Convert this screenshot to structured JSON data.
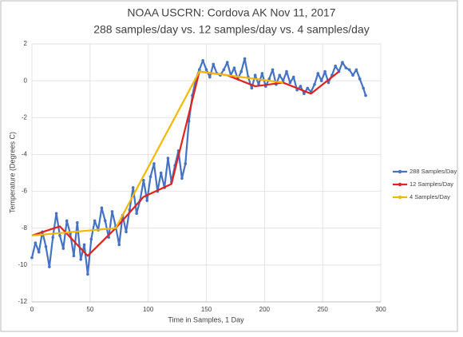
{
  "chart_data": {
    "type": "line",
    "title": "NOAA USCRN:  Cordova AK Nov 11, 2017",
    "subtitle": "288 samples/day vs. 12 samples/day vs. 4 samples/day",
    "x_label": "Time in Samples, 1 Day",
    "y_label": "Temperature  (Degrees C)",
    "xlim": [
      0,
      300
    ],
    "xticks": [
      0,
      50,
      100,
      150,
      200,
      250,
      300
    ],
    "ylim": [
      -12,
      2
    ],
    "yticks": [
      -12,
      -10,
      -8,
      -6,
      -4,
      -2,
      0,
      2
    ],
    "grid": true,
    "legend": "right",
    "series": [
      {
        "name": "288 Samples/Day",
        "color": "#4472c4",
        "markers": true,
        "x": [
          0,
          3,
          6,
          9,
          12,
          15,
          18,
          21,
          24,
          27,
          30,
          33,
          36,
          39,
          42,
          45,
          48,
          51,
          54,
          57,
          60,
          63,
          66,
          69,
          72,
          75,
          78,
          81,
          84,
          87,
          90,
          93,
          96,
          99,
          102,
          105,
          108,
          111,
          114,
          117,
          120,
          123,
          126,
          129,
          132,
          135,
          138,
          141,
          144,
          147,
          150,
          153,
          156,
          159,
          162,
          165,
          168,
          171,
          174,
          177,
          180,
          183,
          186,
          189,
          192,
          195,
          198,
          201,
          204,
          207,
          210,
          213,
          216,
          219,
          222,
          225,
          228,
          231,
          234,
          237,
          240,
          243,
          246,
          249,
          252,
          255,
          258,
          261,
          264,
          267,
          270,
          273,
          276,
          279,
          282,
          285,
          287
        ],
        "values": [
          -9.6,
          -8.8,
          -9.3,
          -8.2,
          -9.0,
          -10.1,
          -8.5,
          -7.2,
          -8.4,
          -9.1,
          -7.6,
          -8.3,
          -9.5,
          -7.7,
          -9.7,
          -8.9,
          -10.5,
          -8.6,
          -7.6,
          -8.1,
          -6.9,
          -7.6,
          -8.5,
          -7.1,
          -7.9,
          -8.9,
          -7.3,
          -8.2,
          -7.0,
          -5.8,
          -7.2,
          -6.5,
          -5.4,
          -6.5,
          -5.2,
          -4.5,
          -6.0,
          -5.0,
          -5.8,
          -4.2,
          -5.5,
          -4.6,
          -3.8,
          -5.3,
          -4.5,
          -2.2,
          -0.8,
          0.1,
          0.6,
          1.1,
          0.6,
          0.2,
          0.9,
          0.4,
          0.3,
          0.6,
          1.0,
          0.3,
          0.7,
          0.1,
          0.5,
          1.2,
          0.2,
          -0.4,
          0.3,
          -0.2,
          0.4,
          -0.3,
          0.1,
          0.6,
          -0.2,
          0.3,
          0.0,
          0.5,
          -0.1,
          0.2,
          -0.5,
          -0.3,
          -0.7,
          -0.4,
          -0.6,
          -0.2,
          0.4,
          0.0,
          0.5,
          -0.1,
          0.3,
          0.8,
          0.5,
          1.0,
          0.7,
          0.6,
          0.3,
          0.6,
          0.1,
          -0.4,
          -0.8
        ]
      },
      {
        "name": "12 Samples/Day",
        "color": "#e3231b",
        "markers": false,
        "x": [
          0,
          24,
          48,
          72,
          96,
          120,
          144,
          168,
          192,
          216,
          240,
          264
        ],
        "values": [
          -8.4,
          -7.9,
          -9.5,
          -8.0,
          -6.3,
          -5.6,
          0.5,
          0.3,
          -0.3,
          -0.1,
          -0.7,
          0.5
        ]
      },
      {
        "name": "4 Samples/Day",
        "color": "#f5b800",
        "markers": false,
        "x": [
          0,
          72,
          144,
          216
        ],
        "values": [
          -8.4,
          -8.0,
          0.5,
          -0.1
        ]
      }
    ]
  }
}
